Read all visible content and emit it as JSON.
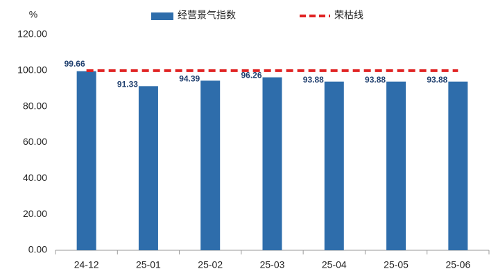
{
  "chart_data": {
    "type": "bar",
    "y_label": "%",
    "categories": [
      "24-12",
      "25-01",
      "25-02",
      "25-03",
      "25-04",
      "25-05",
      "25-06"
    ],
    "series": [
      {
        "name": "经营景气指数",
        "color": "#2e6dab",
        "values": [
          99.66,
          91.33,
          94.39,
          96.26,
          93.88,
          93.88,
          93.88
        ]
      },
      {
        "name": "荣枯线",
        "color": "#e02222",
        "type": "line",
        "dashed": true,
        "values": [
          100,
          100,
          100,
          100,
          100,
          100,
          100
        ]
      }
    ],
    "ylim": [
      0,
      120
    ],
    "yticks": [
      {
        "value": 0,
        "label": "0.00"
      },
      {
        "value": 20,
        "label": "20.00"
      },
      {
        "value": 40,
        "label": "40.00"
      },
      {
        "value": 60,
        "label": "60.00"
      },
      {
        "value": 80,
        "label": "80.00"
      },
      {
        "value": 100,
        "label": "100.00"
      },
      {
        "value": 120,
        "label": "120.00"
      }
    ],
    "grid": false
  }
}
